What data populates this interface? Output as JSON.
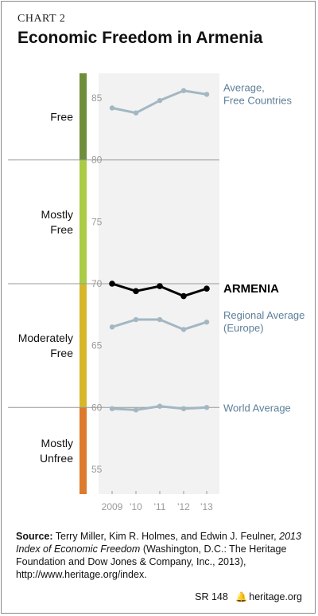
{
  "header": {
    "chart_label": "CHART 2",
    "title": "Economic Freedom in Armenia"
  },
  "chart_data": {
    "type": "line",
    "title": "Economic Freedom in Armenia",
    "x": [
      "2009",
      "'10",
      "'11",
      "'12",
      "'13"
    ],
    "ylim": [
      53,
      87
    ],
    "y_ticks": [
      55,
      60,
      65,
      70,
      75,
      80,
      85
    ],
    "grid": false,
    "series": [
      {
        "name": "Average, Free Countries",
        "label_lines": [
          "Average,",
          "Free Countries"
        ],
        "values": [
          84.2,
          83.8,
          84.8,
          85.6,
          85.3
        ],
        "color": "#a3b7c3",
        "width": 3,
        "label_color": "#5d7f99",
        "label_bold": false,
        "dot_r": 3.2
      },
      {
        "name": "ARMENIA",
        "label_lines": [
          "ARMENIA"
        ],
        "values": [
          70.0,
          69.4,
          69.8,
          69.0,
          69.6
        ],
        "color": "#000000",
        "width": 3,
        "label_color": "#000000",
        "label_bold": true,
        "dot_r": 3.8
      },
      {
        "name": "Regional Average (Europe)",
        "label_lines": [
          "Regional Average",
          "(Europe)"
        ],
        "values": [
          66.5,
          67.1,
          67.1,
          66.3,
          66.9
        ],
        "color": "#a3b7c3",
        "width": 3,
        "label_color": "#5d7f99",
        "label_bold": false,
        "dot_r": 3.2
      },
      {
        "name": "World Average",
        "label_lines": [
          "World Average"
        ],
        "values": [
          59.9,
          59.8,
          60.1,
          59.9,
          60.0
        ],
        "color": "#a3b7c3",
        "width": 3,
        "label_color": "#5d7f99",
        "label_bold": false,
        "dot_r": 3.2
      }
    ],
    "bands": [
      {
        "name": "Free",
        "label_lines": [
          "Free"
        ],
        "from": 80,
        "to": 87,
        "color": "#6e8e3b"
      },
      {
        "name": "Mostly Free",
        "label_lines": [
          "Mostly",
          "Free"
        ],
        "from": 70,
        "to": 80,
        "color": "#a9cc44"
      },
      {
        "name": "Moderately Free",
        "label_lines": [
          "Moderately",
          "Free"
        ],
        "from": 60,
        "to": 70,
        "color": "#d7b72a"
      },
      {
        "name": "Mostly Unfree",
        "label_lines": [
          "Mostly",
          "Unfree"
        ],
        "from": 53,
        "to": 60,
        "color": "#dd7a2e"
      }
    ],
    "plot_background": "#f2f2f2",
    "tick_color": "#9a9a9a",
    "separator_color": "#9a9a9a"
  },
  "source": {
    "prefix": "Source:",
    "authors": "Terry Miller, Kim R. Holmes, and Edwin J. Feulner,",
    "book": "2013 Index of Economic Freedom",
    "rest": "(Washington, D.C.: The Heritage Foundation and Dow Jones & Company, Inc., 2013), http://www.heritage.org/index."
  },
  "footer": {
    "report_id": "SR 148",
    "site": "heritage.org"
  }
}
